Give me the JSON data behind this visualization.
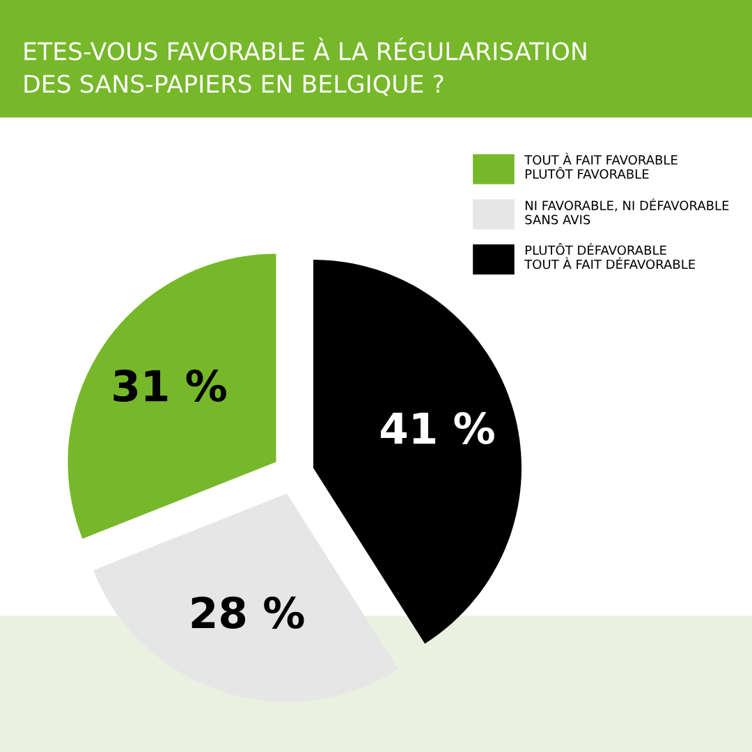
{
  "chart_data": {
    "type": "pie",
    "title": "ETES-VOUS FAVORABLE À LA RÉGULARISATION\nDES SANS-PAPIERS EN BELGIQUE ?",
    "categories": [
      "PLUTÔT DÉFAVORABLE\nTOUT À FAIT DÉFAVORABLE",
      "NI FAVORABLE, NI DÉFAVORABLE\nSANS AVIS",
      "TOUT À FAIT FAVORABLE\nPLUTÔT FAVORABLE"
    ],
    "values": [
      41,
      28,
      31
    ],
    "colors": [
      "#000000",
      "#e6e6e6",
      "#76b82a"
    ],
    "value_labels": [
      "41 %",
      "28 %",
      "31 %"
    ],
    "legend": "top right"
  }
}
